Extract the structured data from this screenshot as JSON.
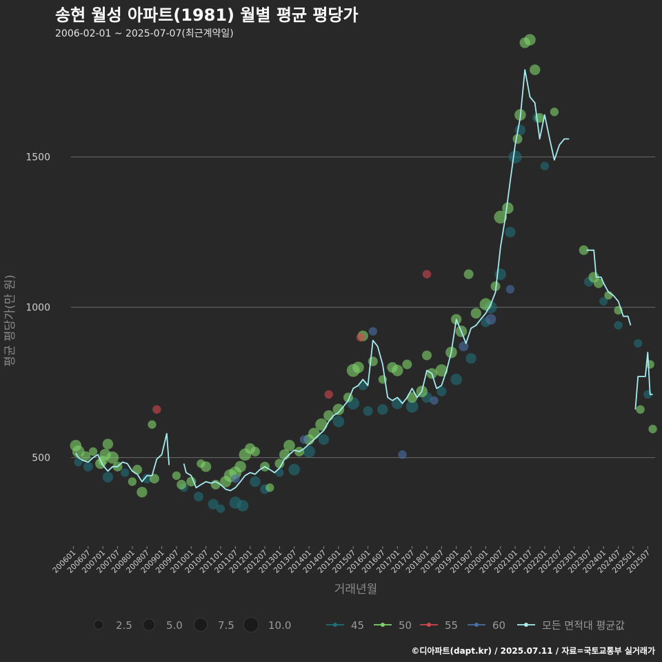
{
  "colors": {
    "background": "#282828",
    "grid": "#6b6b6b",
    "series_45": "#1f6f7a",
    "series_50": "#7fd36a",
    "series_55": "#d1474f",
    "series_60": "#4a6fa5",
    "avg_line": "#a8ecef"
  },
  "chart_data": {
    "type": "scatter",
    "title": "송현 월성 아파트(1981) 월별 평균 평당가",
    "subtitle": "2006-02-01 ~ 2025-07-07(최근계약일)",
    "xlabel": "거래년월",
    "ylabel": "평균 평당가(만 원)",
    "ylim": [
      210,
      1880
    ],
    "yticks": [
      500,
      1000,
      1500
    ],
    "xlim": [
      2005.92,
      2025.75
    ],
    "xtick_labels": [
      "200601",
      "200607",
      "200701",
      "200707",
      "200801",
      "200807",
      "200901",
      "200907",
      "201001",
      "201007",
      "201101",
      "201107",
      "201201",
      "201207",
      "201301",
      "201307",
      "201401",
      "201407",
      "201501",
      "201507",
      "201601",
      "201607",
      "201701",
      "201707",
      "201801",
      "201807",
      "201901",
      "201907",
      "202001",
      "202007",
      "202101",
      "202107",
      "202201",
      "202207",
      "202301",
      "202307",
      "202401",
      "202407",
      "202501",
      "202507"
    ],
    "size_legend": {
      "entries": [
        {
          "label": "2.5",
          "value": 2.5
        },
        {
          "label": "5.0",
          "value": 5.0
        },
        {
          "label": "7.5",
          "value": 7.5
        },
        {
          "label": "10.0",
          "value": 10.0
        }
      ]
    },
    "color_legend": [
      {
        "label": "45",
        "key": "series_45"
      },
      {
        "label": "50",
        "key": "series_50"
      },
      {
        "label": "55",
        "key": "series_55"
      },
      {
        "label": "60",
        "key": "series_60"
      },
      {
        "label": "모든 면적대 평균값",
        "key": "avg_line"
      }
    ],
    "series": [
      {
        "name": "45",
        "points": [
          [
            2006.17,
            485,
            2
          ],
          [
            2006.5,
            470,
            3
          ],
          [
            2007.17,
            435,
            4
          ],
          [
            2007.75,
            450,
            2
          ],
          [
            2008.5,
            430,
            3
          ],
          [
            2009.75,
            400,
            2
          ],
          [
            2010.25,
            370,
            3
          ],
          [
            2010.75,
            345,
            4
          ],
          [
            2011.0,
            330,
            2
          ],
          [
            2011.5,
            350,
            6
          ],
          [
            2011.75,
            340,
            5
          ],
          [
            2012.17,
            420,
            4
          ],
          [
            2012.5,
            395,
            3
          ],
          [
            2013.0,
            450,
            2
          ],
          [
            2013.5,
            460,
            5
          ],
          [
            2014.0,
            520,
            6
          ],
          [
            2014.5,
            560,
            4
          ],
          [
            2015.0,
            620,
            5
          ],
          [
            2015.5,
            680,
            6
          ],
          [
            2015.83,
            740,
            3
          ],
          [
            2016.0,
            655,
            3
          ],
          [
            2016.5,
            660,
            4
          ],
          [
            2017.0,
            680,
            5
          ],
          [
            2017.5,
            670,
            6
          ],
          [
            2018.0,
            700,
            4
          ],
          [
            2018.5,
            720,
            3
          ],
          [
            2019.0,
            760,
            5
          ],
          [
            2019.5,
            830,
            4
          ],
          [
            2020.0,
            950,
            3
          ],
          [
            2020.17,
            1000,
            6
          ],
          [
            2020.5,
            1110,
            5
          ],
          [
            2020.83,
            1250,
            4
          ],
          [
            2021.0,
            1500,
            7
          ],
          [
            2021.17,
            1590,
            4
          ],
          [
            2021.75,
            1630,
            3
          ],
          [
            2022.0,
            1470,
            2
          ],
          [
            2023.5,
            1085,
            3
          ],
          [
            2024.0,
            1020,
            2
          ],
          [
            2024.5,
            940,
            2
          ],
          [
            2025.17,
            880,
            2
          ],
          [
            2025.5,
            710,
            2
          ]
        ]
      },
      {
        "name": "50",
        "points": [
          [
            2006.08,
            540,
            5
          ],
          [
            2006.17,
            520,
            6
          ],
          [
            2006.42,
            505,
            3
          ],
          [
            2006.67,
            520,
            2
          ],
          [
            2006.92,
            480,
            4
          ],
          [
            2007.0,
            490,
            3
          ],
          [
            2007.08,
            510,
            5
          ],
          [
            2007.17,
            545,
            4
          ],
          [
            2007.33,
            500,
            6
          ],
          [
            2007.5,
            470,
            3
          ],
          [
            2008.0,
            420,
            2
          ],
          [
            2008.17,
            460,
            3
          ],
          [
            2008.33,
            385,
            4
          ],
          [
            2008.67,
            610,
            2
          ],
          [
            2008.75,
            430,
            3
          ],
          [
            2009.5,
            440,
            2
          ],
          [
            2009.67,
            410,
            3
          ],
          [
            2010.0,
            420,
            3
          ],
          [
            2010.33,
            480,
            2
          ],
          [
            2010.5,
            470,
            4
          ],
          [
            2010.83,
            410,
            3
          ],
          [
            2011.17,
            420,
            5
          ],
          [
            2011.33,
            440,
            7
          ],
          [
            2011.5,
            450,
            6
          ],
          [
            2011.67,
            470,
            5
          ],
          [
            2011.83,
            510,
            6
          ],
          [
            2012.0,
            530,
            4
          ],
          [
            2012.17,
            520,
            3
          ],
          [
            2012.5,
            470,
            3
          ],
          [
            2012.67,
            400,
            2
          ],
          [
            2013.0,
            480,
            3
          ],
          [
            2013.17,
            510,
            4
          ],
          [
            2013.33,
            540,
            5
          ],
          [
            2013.67,
            520,
            3
          ],
          [
            2014.0,
            560,
            4
          ],
          [
            2014.17,
            580,
            5
          ],
          [
            2014.42,
            610,
            6
          ],
          [
            2014.67,
            640,
            4
          ],
          [
            2015.0,
            660,
            5
          ],
          [
            2015.33,
            700,
            3
          ],
          [
            2015.5,
            790,
            7
          ],
          [
            2015.67,
            800,
            5
          ],
          [
            2015.83,
            905,
            4
          ],
          [
            2016.17,
            820,
            3
          ],
          [
            2016.5,
            760,
            2
          ],
          [
            2016.83,
            800,
            4
          ],
          [
            2017.0,
            790,
            5
          ],
          [
            2017.33,
            810,
            3
          ],
          [
            2017.5,
            700,
            4
          ],
          [
            2017.83,
            720,
            5
          ],
          [
            2018.0,
            840,
            3
          ],
          [
            2018.17,
            780,
            4
          ],
          [
            2018.5,
            790,
            6
          ],
          [
            2018.83,
            850,
            5
          ],
          [
            2019.0,
            960,
            4
          ],
          [
            2019.17,
            920,
            5
          ],
          [
            2019.42,
            1110,
            3
          ],
          [
            2019.67,
            980,
            4
          ],
          [
            2020.0,
            1010,
            6
          ],
          [
            2020.33,
            1070,
            3
          ],
          [
            2020.5,
            1300,
            7
          ],
          [
            2020.75,
            1330,
            5
          ],
          [
            2021.08,
            1560,
            3
          ],
          [
            2021.17,
            1640,
            5
          ],
          [
            2021.33,
            1880,
            4
          ],
          [
            2021.5,
            1890,
            5
          ],
          [
            2021.67,
            1790,
            4
          ],
          [
            2021.83,
            1630,
            3
          ],
          [
            2022.33,
            1650,
            2
          ],
          [
            2023.33,
            1190,
            3
          ],
          [
            2023.67,
            1100,
            4
          ],
          [
            2023.83,
            1080,
            3
          ],
          [
            2024.17,
            1040,
            2
          ],
          [
            2024.5,
            990,
            2
          ],
          [
            2025.25,
            660,
            2
          ],
          [
            2025.58,
            810,
            2
          ],
          [
            2025.67,
            595,
            2
          ]
        ]
      },
      {
        "name": "55",
        "points": [
          [
            2008.83,
            660,
            2
          ],
          [
            2014.67,
            710,
            2
          ],
          [
            2015.75,
            900,
            2
          ],
          [
            2018.0,
            1110,
            2
          ]
        ]
      },
      {
        "name": "60",
        "points": [
          [
            2011.5,
            430,
            2
          ],
          [
            2013.83,
            560,
            2
          ],
          [
            2016.17,
            920,
            2
          ],
          [
            2017.17,
            510,
            2
          ],
          [
            2018.25,
            690,
            2
          ],
          [
            2019.25,
            870,
            3
          ],
          [
            2020.17,
            960,
            4
          ],
          [
            2020.83,
            1060,
            2
          ]
        ]
      }
    ],
    "avg_line": [
      [
        2006.08,
        515
      ],
      [
        2006.17,
        500
      ],
      [
        2006.33,
        490
      ],
      [
        2006.5,
        485
      ],
      [
        2006.67,
        500
      ],
      [
        2006.83,
        510
      ],
      [
        2007.0,
        475
      ],
      [
        2007.17,
        455
      ],
      [
        2007.33,
        470
      ],
      [
        2007.5,
        470
      ],
      [
        2007.67,
        485
      ],
      [
        2007.83,
        480
      ],
      [
        2008.0,
        455
      ],
      [
        2008.17,
        445
      ],
      [
        2008.33,
        420
      ],
      [
        2008.5,
        440
      ],
      [
        2008.67,
        440
      ],
      [
        2008.83,
        495
      ],
      [
        2009.0,
        510
      ],
      [
        2009.17,
        580
      ],
      [
        2009.25,
        475
      ],
      [
        null,
        null
      ],
      [
        2009.75,
        480
      ],
      [
        2009.83,
        450
      ],
      [
        2010.0,
        440
      ],
      [
        2010.17,
        400
      ],
      [
        2010.33,
        410
      ],
      [
        2010.5,
        420
      ],
      [
        2010.67,
        415
      ],
      [
        2010.83,
        420
      ],
      [
        2011.0,
        410
      ],
      [
        2011.17,
        395
      ],
      [
        2011.33,
        390
      ],
      [
        2011.5,
        400
      ],
      [
        2011.67,
        420
      ],
      [
        2011.83,
        440
      ],
      [
        2012.0,
        450
      ],
      [
        2012.17,
        445
      ],
      [
        2012.33,
        460
      ],
      [
        2012.5,
        470
      ],
      [
        2012.67,
        460
      ],
      [
        2012.83,
        450
      ],
      [
        2013.0,
        465
      ],
      [
        2013.17,
        495
      ],
      [
        2013.33,
        510
      ],
      [
        2013.5,
        525
      ],
      [
        2013.67,
        520
      ],
      [
        2013.83,
        530
      ],
      [
        2014.0,
        545
      ],
      [
        2014.17,
        560
      ],
      [
        2014.33,
        575
      ],
      [
        2014.5,
        590
      ],
      [
        2014.67,
        620
      ],
      [
        2014.83,
        640
      ],
      [
        2015.0,
        650
      ],
      [
        2015.17,
        670
      ],
      [
        2015.33,
        690
      ],
      [
        2015.5,
        730
      ],
      [
        2015.67,
        740
      ],
      [
        2015.83,
        760
      ],
      [
        2016.0,
        740
      ],
      [
        2016.17,
        890
      ],
      [
        2016.33,
        870
      ],
      [
        2016.5,
        810
      ],
      [
        2016.67,
        700
      ],
      [
        2016.83,
        690
      ],
      [
        2017.0,
        700
      ],
      [
        2017.17,
        680
      ],
      [
        2017.33,
        700
      ],
      [
        2017.5,
        730
      ],
      [
        2017.67,
        700
      ],
      [
        2017.83,
        720
      ],
      [
        2018.0,
        790
      ],
      [
        2018.17,
        780
      ],
      [
        2018.33,
        730
      ],
      [
        2018.5,
        740
      ],
      [
        2018.67,
        790
      ],
      [
        2018.83,
        850
      ],
      [
        2019.0,
        960
      ],
      [
        2019.17,
        920
      ],
      [
        2019.33,
        880
      ],
      [
        2019.5,
        930
      ],
      [
        2019.67,
        940
      ],
      [
        2019.83,
        960
      ],
      [
        2020.0,
        980
      ],
      [
        2020.17,
        1010
      ],
      [
        2020.33,
        1050
      ],
      [
        2020.5,
        1200
      ],
      [
        2020.67,
        1300
      ],
      [
        2020.83,
        1420
      ],
      [
        2021.0,
        1540
      ],
      [
        2021.17,
        1630
      ],
      [
        2021.33,
        1790
      ],
      [
        2021.5,
        1700
      ],
      [
        2021.67,
        1680
      ],
      [
        2021.83,
        1560
      ],
      [
        2022.0,
        1640
      ],
      [
        2022.17,
        1560
      ],
      [
        2022.33,
        1490
      ],
      [
        2022.5,
        1540
      ],
      [
        2022.67,
        1560
      ],
      [
        2022.83,
        1560
      ],
      [
        null,
        null
      ],
      [
        2023.42,
        1190
      ],
      [
        2023.67,
        1190
      ],
      [
        2023.75,
        1100
      ],
      [
        2023.92,
        1100
      ],
      [
        2024.0,
        1080
      ],
      [
        2024.17,
        1050
      ],
      [
        2024.33,
        1040
      ],
      [
        2024.5,
        1020
      ],
      [
        2024.67,
        970
      ],
      [
        2024.83,
        970
      ],
      [
        2024.92,
        940
      ],
      [
        null,
        null
      ],
      [
        2025.08,
        660
      ],
      [
        2025.17,
        770
      ],
      [
        2025.42,
        770
      ],
      [
        2025.5,
        850
      ],
      [
        2025.58,
        710
      ],
      [
        2025.67,
        710
      ]
    ],
    "caption": "©디아파트(dapt.kr) / 2025.07.11 / 자료=국토교통부 실거래가"
  }
}
